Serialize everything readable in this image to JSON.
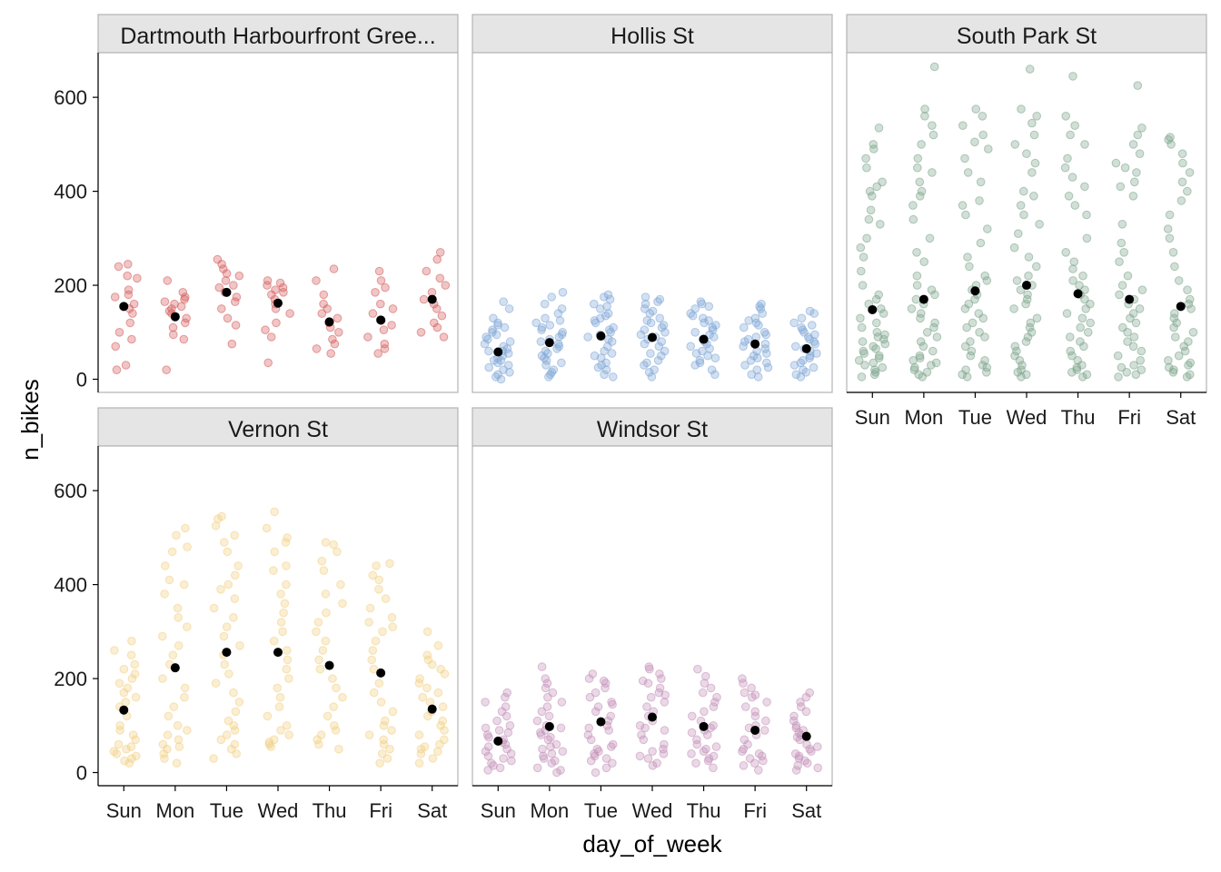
{
  "chart_data": {
    "type": "scatter",
    "subtype": "faceted jitter strip plot with mean points",
    "xlabel": "day_of_week",
    "ylabel": "n_bikes",
    "categories": [
      "Sun",
      "Mon",
      "Tue",
      "Wed",
      "Thu",
      "Fri",
      "Sat"
    ],
    "y_ticks": [
      "0",
      "200",
      "400",
      "600"
    ],
    "ylim": [
      -28,
      695
    ],
    "point_alpha": 0.35,
    "mean_color": "#000000",
    "grid": false,
    "legend": "none",
    "series": [
      {
        "name": "Dartmouth Harbourfront Gree...",
        "color": "#d45a5a",
        "mean": [
          155,
          133,
          185,
          162,
          122,
          126,
          170
        ],
        "points": [
          [
            245,
            240,
            220,
            215,
            190,
            180,
            175,
            160,
            150,
            140,
            120,
            100,
            85,
            70,
            30,
            20
          ],
          [
            210,
            185,
            175,
            170,
            165,
            160,
            155,
            150,
            145,
            140,
            130,
            120,
            110,
            95,
            85,
            20
          ],
          [
            255,
            245,
            235,
            225,
            220,
            210,
            200,
            195,
            185,
            175,
            165,
            150,
            130,
            115,
            75
          ],
          [
            210,
            205,
            200,
            195,
            190,
            185,
            180,
            170,
            160,
            150,
            140,
            120,
            105,
            90,
            35
          ],
          [
            235,
            210,
            180,
            160,
            150,
            140,
            130,
            120,
            110,
            100,
            85,
            75,
            65,
            55
          ],
          [
            230,
            210,
            195,
            185,
            160,
            150,
            140,
            125,
            115,
            105,
            90,
            75,
            65,
            55
          ],
          [
            270,
            255,
            230,
            215,
            200,
            185,
            170,
            160,
            150,
            135,
            120,
            110,
            100,
            90
          ]
        ]
      },
      {
        "name": "Hollis St",
        "color": "#7fa6d6",
        "mean": [
          58,
          78,
          92,
          89,
          85,
          75,
          65
        ],
        "points": [
          [
            165,
            150,
            130,
            120,
            115,
            110,
            105,
            100,
            95,
            90,
            85,
            80,
            75,
            70,
            65,
            60,
            55,
            50,
            45,
            40,
            35,
            30,
            25,
            20,
            15,
            10,
            5,
            0,
            60,
            40
          ],
          [
            185,
            175,
            160,
            150,
            140,
            130,
            125,
            120,
            115,
            110,
            105,
            100,
            95,
            90,
            85,
            80,
            75,
            70,
            65,
            60,
            55,
            50,
            45,
            40,
            35,
            30,
            20,
            15,
            10,
            5
          ],
          [
            180,
            175,
            170,
            160,
            155,
            150,
            140,
            135,
            130,
            125,
            120,
            110,
            105,
            100,
            95,
            90,
            85,
            80,
            70,
            60,
            55,
            50,
            45,
            35,
            30,
            25,
            20,
            10,
            5
          ],
          [
            175,
            170,
            165,
            160,
            150,
            145,
            140,
            130,
            125,
            120,
            115,
            110,
            105,
            100,
            95,
            90,
            85,
            80,
            75,
            70,
            60,
            55,
            50,
            40,
            35,
            30,
            20,
            15,
            5
          ],
          [
            165,
            160,
            155,
            150,
            140,
            135,
            130,
            125,
            120,
            115,
            110,
            105,
            100,
            95,
            90,
            85,
            80,
            75,
            70,
            65,
            60,
            55,
            50,
            45,
            40,
            35,
            30,
            20,
            10
          ],
          [
            160,
            155,
            150,
            140,
            130,
            125,
            120,
            115,
            110,
            100,
            95,
            90,
            85,
            80,
            75,
            70,
            65,
            60,
            55,
            50,
            45,
            40,
            35,
            30,
            25,
            20,
            10,
            5
          ],
          [
            145,
            140,
            130,
            120,
            115,
            110,
            105,
            100,
            95,
            90,
            85,
            80,
            75,
            70,
            65,
            60,
            55,
            50,
            45,
            40,
            35,
            30,
            25,
            20,
            15,
            10,
            5
          ]
        ]
      },
      {
        "name": "South Park St",
        "color": "#7aa38a",
        "mean": [
          148,
          170,
          188,
          200,
          182,
          170,
          155
        ],
        "points": [
          [
            535,
            500,
            490,
            470,
            450,
            420,
            410,
            400,
            390,
            360,
            340,
            330,
            300,
            280,
            260,
            230,
            200,
            180,
            170,
            160,
            150,
            140,
            130,
            120,
            110,
            100,
            95,
            90,
            85,
            80,
            75,
            70,
            65,
            60,
            55,
            50,
            45,
            40,
            35,
            30,
            25,
            20,
            15,
            10,
            5
          ],
          [
            665,
            575,
            560,
            540,
            520,
            500,
            470,
            450,
            440,
            420,
            400,
            390,
            370,
            340,
            300,
            270,
            250,
            220,
            200,
            190,
            180,
            170,
            160,
            150,
            140,
            130,
            120,
            110,
            100,
            90,
            80,
            70,
            60,
            50,
            45,
            40,
            35,
            30,
            25,
            20,
            15,
            10,
            5
          ],
          [
            575,
            560,
            540,
            520,
            505,
            490,
            470,
            440,
            420,
            380,
            370,
            350,
            320,
            290,
            260,
            240,
            220,
            210,
            200,
            190,
            180,
            170,
            160,
            150,
            140,
            130,
            120,
            110,
            100,
            90,
            80,
            70,
            60,
            50,
            40,
            30,
            25,
            20,
            15,
            10,
            5
          ],
          [
            660,
            575,
            560,
            545,
            520,
            500,
            480,
            460,
            440,
            400,
            390,
            370,
            350,
            330,
            310,
            280,
            260,
            240,
            220,
            210,
            200,
            190,
            180,
            170,
            160,
            150,
            130,
            120,
            110,
            100,
            90,
            80,
            70,
            60,
            50,
            40,
            30,
            20,
            15,
            10,
            5
          ],
          [
            645,
            560,
            540,
            520,
            500,
            470,
            450,
            430,
            410,
            390,
            370,
            350,
            300,
            270,
            250,
            235,
            220,
            210,
            200,
            190,
            180,
            170,
            160,
            150,
            140,
            130,
            120,
            110,
            100,
            90,
            80,
            70,
            60,
            50,
            40,
            30,
            25,
            20,
            15,
            10,
            5
          ],
          [
            625,
            535,
            520,
            500,
            480,
            460,
            450,
            440,
            420,
            410,
            390,
            330,
            290,
            270,
            250,
            220,
            200,
            190,
            180,
            170,
            160,
            150,
            140,
            130,
            120,
            110,
            100,
            90,
            80,
            70,
            60,
            50,
            40,
            30,
            25,
            20,
            15,
            10,
            5
          ],
          [
            515,
            510,
            500,
            480,
            460,
            440,
            420,
            400,
            380,
            350,
            320,
            300,
            270,
            240,
            210,
            190,
            170,
            160,
            150,
            140,
            130,
            120,
            110,
            100,
            90,
            80,
            70,
            60,
            50,
            40,
            35,
            30,
            25,
            20,
            15,
            10,
            5
          ]
        ]
      },
      {
        "name": "Vernon St",
        "color": "#f2cf82",
        "mean": [
          133,
          223,
          256,
          256,
          228,
          212,
          135
        ],
        "points": [
          [
            280,
            260,
            250,
            230,
            220,
            210,
            200,
            190,
            180,
            170,
            160,
            150,
            140,
            120,
            100,
            90,
            80,
            70,
            60,
            55,
            50,
            45,
            40,
            35,
            30,
            25,
            20
          ],
          [
            520,
            505,
            480,
            470,
            440,
            410,
            400,
            380,
            350,
            330,
            310,
            290,
            270,
            250,
            230,
            200,
            180,
            160,
            140,
            120,
            100,
            90,
            80,
            70,
            60,
            55,
            50,
            40,
            30,
            20
          ],
          [
            545,
            540,
            525,
            505,
            490,
            470,
            440,
            420,
            400,
            390,
            370,
            350,
            330,
            310,
            290,
            270,
            250,
            230,
            210,
            190,
            170,
            150,
            130,
            110,
            100,
            90,
            80,
            70,
            60,
            50,
            40,
            30
          ],
          [
            555,
            520,
            500,
            490,
            470,
            440,
            430,
            400,
            380,
            360,
            340,
            320,
            300,
            280,
            260,
            240,
            220,
            200,
            180,
            160,
            140,
            120,
            100,
            90,
            80,
            70,
            65,
            60,
            55
          ],
          [
            490,
            485,
            470,
            450,
            430,
            400,
            380,
            360,
            340,
            320,
            300,
            280,
            260,
            240,
            220,
            200,
            180,
            160,
            140,
            120,
            100,
            90,
            80,
            70,
            60,
            50
          ],
          [
            445,
            440,
            420,
            410,
            390,
            370,
            350,
            330,
            320,
            310,
            300,
            280,
            260,
            240,
            220,
            190,
            170,
            150,
            130,
            110,
            100,
            90,
            80,
            70,
            60,
            50,
            40,
            30,
            20
          ],
          [
            300,
            270,
            250,
            240,
            230,
            220,
            210,
            200,
            190,
            180,
            170,
            160,
            150,
            140,
            130,
            120,
            110,
            100,
            90,
            80,
            70,
            60,
            55,
            50,
            45,
            40,
            30,
            20
          ]
        ]
      },
      {
        "name": "Windsor St",
        "color": "#c28fb8",
        "mean": [
          67,
          98,
          108,
          118,
          98,
          90,
          77
        ],
        "points": [
          [
            170,
            160,
            150,
            140,
            130,
            120,
            110,
            100,
            95,
            90,
            85,
            80,
            75,
            70,
            65,
            60,
            55,
            50,
            45,
            40,
            35,
            30,
            25,
            20,
            15,
            10,
            5
          ],
          [
            225,
            200,
            190,
            180,
            170,
            160,
            150,
            140,
            130,
            120,
            110,
            100,
            95,
            90,
            85,
            80,
            75,
            70,
            60,
            55,
            50,
            45,
            40,
            35,
            30,
            25,
            20,
            10,
            5,
            0
          ],
          [
            210,
            200,
            195,
            190,
            180,
            170,
            160,
            150,
            145,
            140,
            130,
            120,
            110,
            100,
            95,
            90,
            80,
            70,
            60,
            55,
            50,
            45,
            40,
            35,
            30,
            25,
            20,
            10,
            0
          ],
          [
            225,
            220,
            210,
            200,
            195,
            190,
            180,
            170,
            165,
            160,
            150,
            140,
            130,
            120,
            110,
            100,
            95,
            90,
            80,
            70,
            60,
            50,
            45,
            40,
            35,
            30,
            20,
            15
          ],
          [
            220,
            205,
            190,
            180,
            170,
            160,
            150,
            140,
            130,
            120,
            110,
            100,
            95,
            90,
            85,
            80,
            70,
            60,
            55,
            50,
            45,
            40,
            35,
            30,
            25,
            20,
            10
          ],
          [
            200,
            190,
            180,
            170,
            165,
            160,
            150,
            140,
            130,
            120,
            110,
            100,
            95,
            90,
            80,
            70,
            60,
            50,
            45,
            40,
            35,
            30,
            25,
            20,
            15,
            5
          ],
          [
            170,
            160,
            150,
            140,
            130,
            120,
            110,
            100,
            95,
            90,
            85,
            80,
            75,
            70,
            60,
            55,
            50,
            45,
            40,
            35,
            30,
            25,
            20,
            15,
            10,
            5
          ]
        ]
      }
    ]
  }
}
